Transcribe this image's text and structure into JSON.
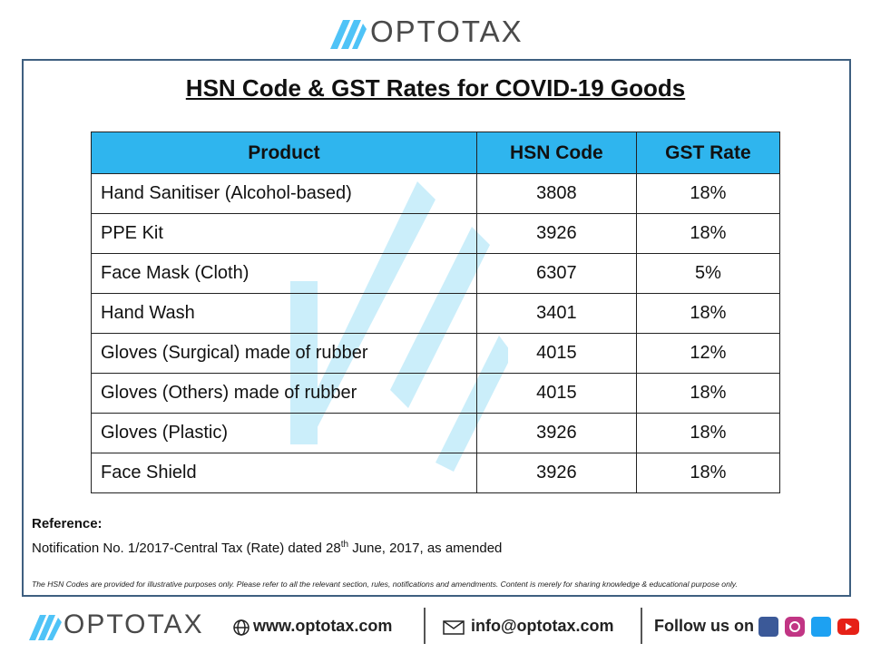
{
  "header": {
    "logo": "OPTOTAX"
  },
  "title": "HSN Code & GST Rates for COVID-19 Goods",
  "table": {
    "columns": [
      "Product",
      "HSN Code",
      "GST Rate"
    ],
    "rows": [
      [
        "Hand Sanitiser (Alcohol-based)",
        "3808",
        "18%"
      ],
      [
        "PPE Kit",
        "3926",
        "18%"
      ],
      [
        "Face Mask (Cloth)",
        "6307",
        "5%"
      ],
      [
        "Hand Wash",
        "3401",
        "18%"
      ],
      [
        "Gloves (Surgical) made of rubber",
        "4015",
        "12%"
      ],
      [
        "Gloves (Others) made of rubber",
        "4015",
        "18%"
      ],
      [
        "Gloves (Plastic)",
        "3926",
        "18%"
      ],
      [
        "Face Shield",
        "3926",
        "18%"
      ]
    ]
  },
  "reference": {
    "label": "Reference:",
    "text_before": "Notification No. 1/2017-Central Tax (Rate) dated 28",
    "superscript": "th",
    "text_after": " June, 2017, as amended"
  },
  "disclaimer": "The HSN Codes are provided for illustrative purposes only. Please refer to all the relevant section, rules, notifications and amendments. Content is merely for sharing knowledge & educational purpose only.",
  "footer": {
    "logo": "OPTOTAX",
    "website": "www.optotax.com",
    "email": "info@optotax.com",
    "follow": "Follow us on"
  }
}
